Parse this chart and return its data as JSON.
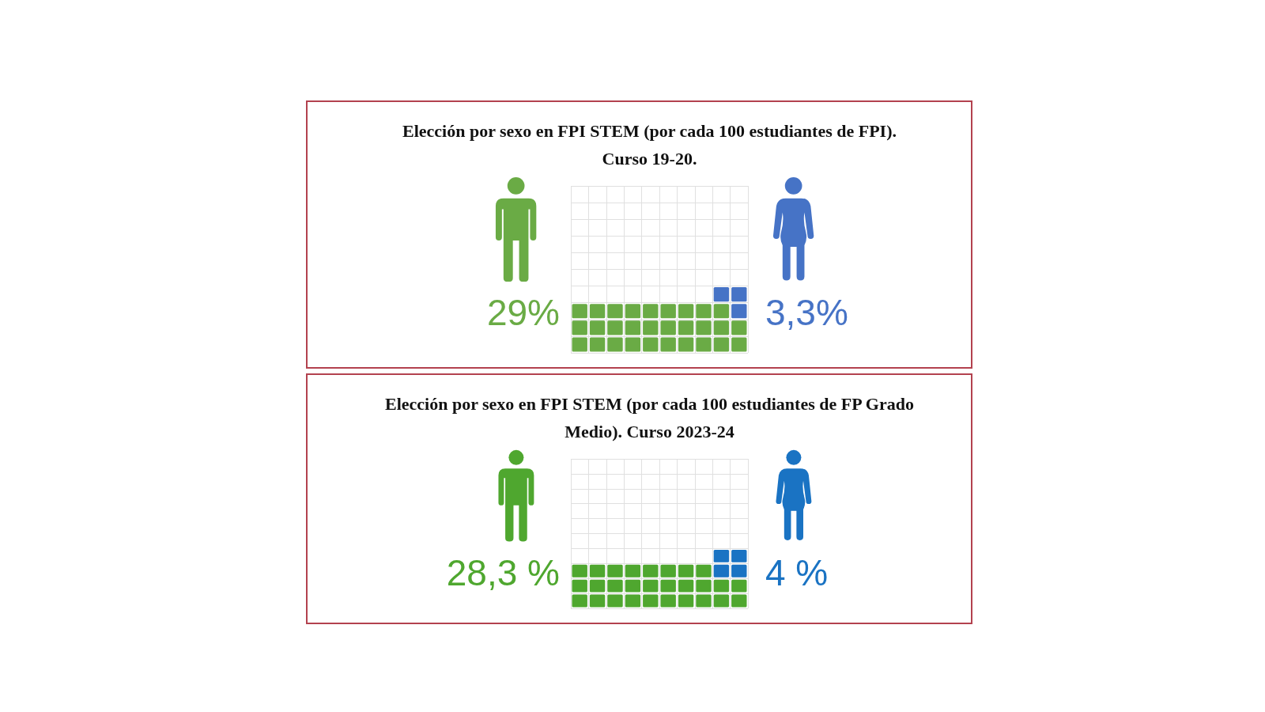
{
  "chart_data": [
    {
      "type": "other",
      "title": "Elección por sexo en FPI STEM (por cada 100 estudiantes de FPI).\nCurso 19-20.",
      "values": [
        29,
        3.3
      ],
      "colors": [
        "#6aab45",
        "#4673c6"
      ],
      "value_labels": [
        "29%",
        "3,3%"
      ]
    },
    {
      "type": "other",
      "title": "Elección por sexo en FPI STEM (por cada 100 estudiantes de FP Grado\nMedio). Curso 2023-24",
      "values": [
        28.3,
        4
      ],
      "colors": [
        "#4fa72f",
        "#1a73c3"
      ],
      "value_labels": [
        "28,3 %",
        "4 %"
      ]
    }
  ]
}
